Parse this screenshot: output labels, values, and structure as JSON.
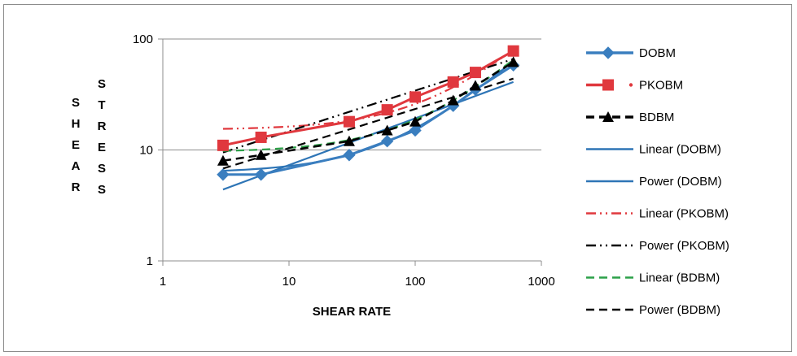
{
  "chart_data": {
    "type": "scatter",
    "x_scale": "log",
    "y_scale": "log",
    "xlim": [
      1,
      1000
    ],
    "ylim": [
      1,
      100
    ],
    "xlabel": "SHEAR RATE",
    "ylabel_words": [
      "SHEAR",
      "STRESS"
    ],
    "x_ticks": [
      "1",
      "10",
      "100",
      "1000"
    ],
    "y_ticks": [
      "1",
      "10",
      "100"
    ],
    "grid": "horizontal",
    "legend_position": "right",
    "series": [
      {
        "name": "DOBM",
        "marker": "diamond",
        "color": "#3a7ebf",
        "x": [
          3,
          6,
          30,
          60,
          100,
          200,
          300,
          600
        ],
        "y": [
          6,
          6,
          9,
          12,
          15,
          25,
          35,
          58
        ]
      },
      {
        "name": "PKOBM",
        "marker": "square",
        "color": "#e0383e",
        "x": [
          3,
          6,
          30,
          60,
          100,
          200,
          300,
          600
        ],
        "y": [
          11,
          13,
          18,
          23,
          30,
          41,
          50,
          78
        ]
      },
      {
        "name": "BDBM",
        "marker": "triangle",
        "color": "#000000",
        "x": [
          3,
          6,
          30,
          60,
          100,
          200,
          300,
          600
        ],
        "y": [
          8,
          9,
          12,
          15,
          18,
          28,
          38,
          62
        ]
      }
    ],
    "trendlines": [
      {
        "name": "Linear (DOBM)",
        "type": "linear",
        "dash": "solid",
        "color": "#2e75b6",
        "x": [
          3,
          600
        ],
        "y": [
          6.5,
          63
        ]
      },
      {
        "name": "Power (DOBM)",
        "type": "power",
        "dash": "solid",
        "color": "#2e75b6",
        "x": [
          3,
          600
        ],
        "y": [
          4.4,
          41
        ]
      },
      {
        "name": "Linear (PKOBM)",
        "type": "linear",
        "dash": "dash-dot-dot",
        "color": "#e0383e",
        "x": [
          3,
          600
        ],
        "y": [
          15.5,
          80
        ]
      },
      {
        "name": "Power (PKOBM)",
        "type": "power",
        "dash": "dash-dot-dot",
        "color": "#000000",
        "x": [
          3,
          600
        ],
        "y": [
          9.5,
          66
        ]
      },
      {
        "name": "Linear (BDBM)",
        "type": "linear",
        "dash": "dash",
        "color": "#2ca048",
        "x": [
          3,
          600
        ],
        "y": [
          9.8,
          65
        ]
      },
      {
        "name": "Power (BDBM)",
        "type": "power",
        "dash": "dash",
        "color": "#000000",
        "x": [
          3,
          600
        ],
        "y": [
          6.8,
          44
        ]
      }
    ]
  }
}
